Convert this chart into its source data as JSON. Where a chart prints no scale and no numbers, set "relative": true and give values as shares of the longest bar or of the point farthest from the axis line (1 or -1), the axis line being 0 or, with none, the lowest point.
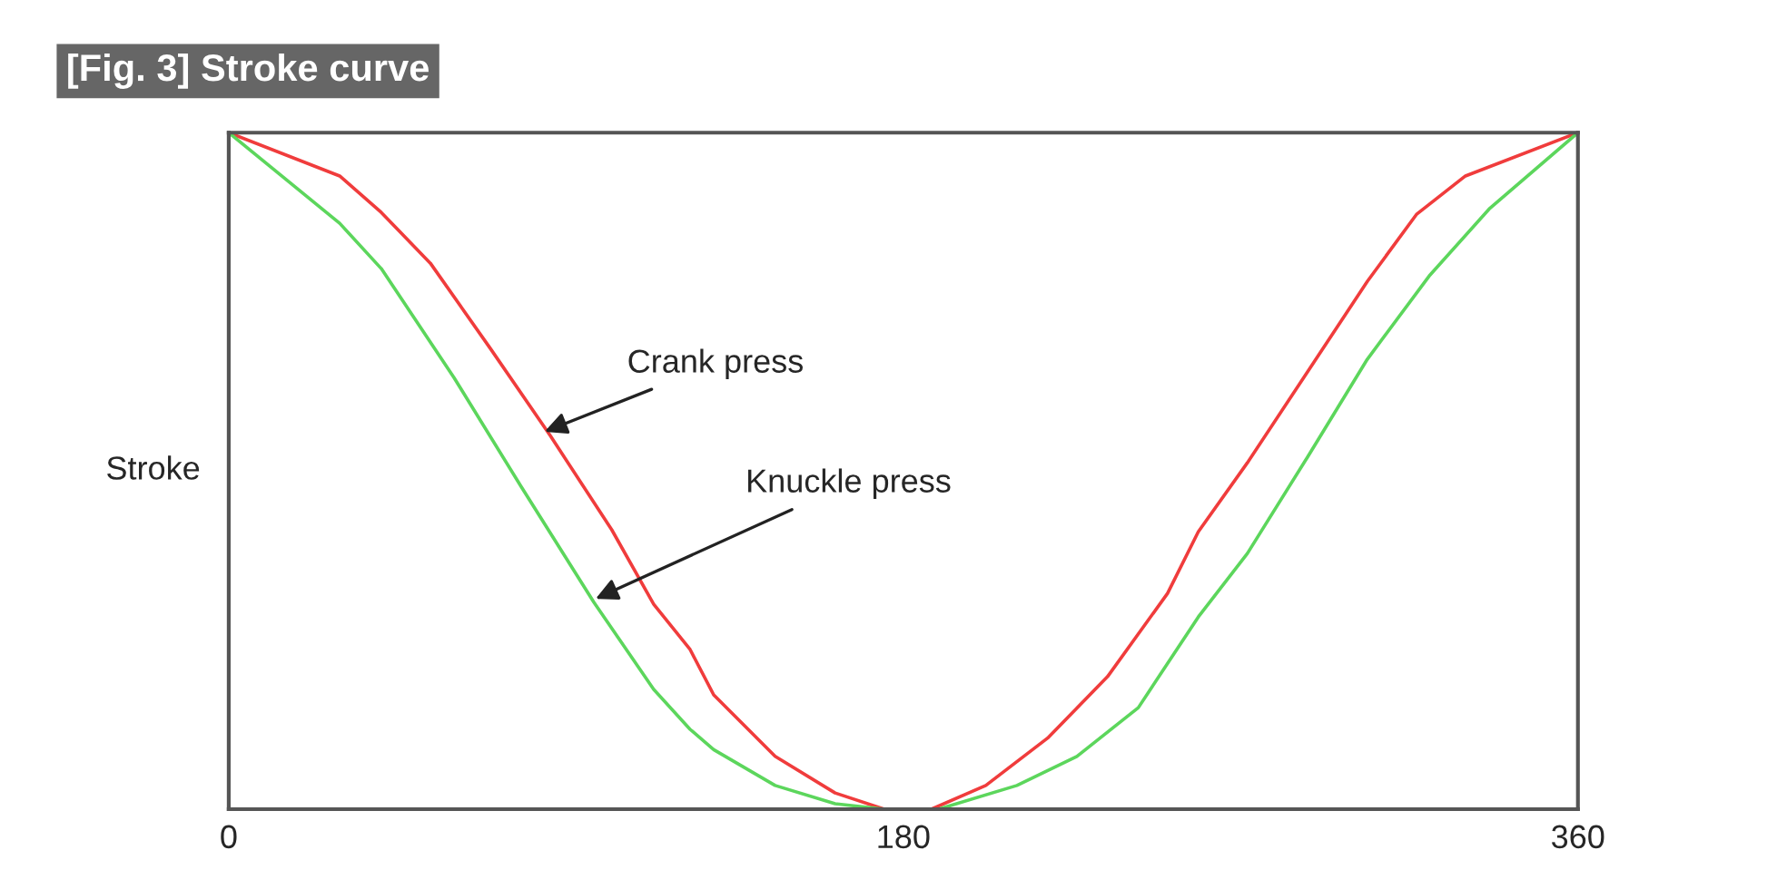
{
  "chart_data": {
    "type": "line",
    "title": "[Fig. 3] Stroke curve",
    "ylabel": "Stroke",
    "relative": true,
    "xlim": [
      0,
      360
    ],
    "xticks": [
      0,
      180,
      360
    ],
    "grid": false,
    "legend": false,
    "series": [
      {
        "color": "#f03c3c",
        "x": [
          0,
          29.6,
          40.7,
          53.8,
          69.8,
          85.8,
          102.2,
          113.4,
          123.1,
          129.4,
          145.8,
          161.8,
          174.9,
          181.2,
          187.5,
          202,
          218.5,
          234.5,
          250.5,
          258.7,
          271.8,
          287.8,
          303.8,
          316.9,
          330,
          360
        ],
        "values": [
          1,
          0.936,
          0.882,
          0.807,
          0.681,
          0.552,
          0.413,
          0.303,
          0.236,
          0.169,
          0.078,
          0.024,
          0,
          0,
          0,
          0.035,
          0.105,
          0.196,
          0.319,
          0.41,
          0.512,
          0.646,
          0.78,
          0.879,
          0.936,
          1
        ]
      },
      {
        "color": "#5cd65c",
        "x": [
          0,
          29.6,
          40.7,
          60.1,
          78,
          97.4,
          113.4,
          123.1,
          129.4,
          145.8,
          161.8,
          174.9,
          189.4,
          210.3,
          226.3,
          242.7,
          258.7,
          271.8,
          287.8,
          303.8,
          320.3,
          336.3,
          360
        ],
        "values": [
          1,
          0.866,
          0.799,
          0.638,
          0.477,
          0.306,
          0.177,
          0.118,
          0.088,
          0.035,
          0.008,
          0,
          0,
          0.035,
          0.078,
          0.15,
          0.284,
          0.378,
          0.52,
          0.665,
          0.788,
          0.887,
          1
        ]
      }
    ],
    "annotations": [
      {
        "text": "Crank press",
        "x": 84.3,
        "y": 0.558
      },
      {
        "text": "Knuckle press",
        "x": 97.9,
        "y": 0.311
      }
    ]
  }
}
